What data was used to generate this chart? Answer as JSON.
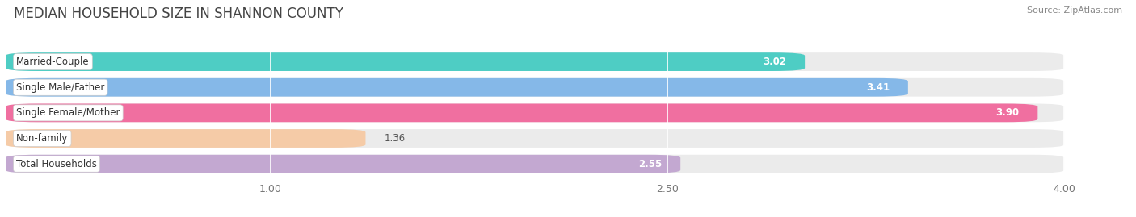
{
  "title": "MEDIAN HOUSEHOLD SIZE IN SHANNON COUNTY",
  "source": "Source: ZipAtlas.com",
  "categories": [
    "Married-Couple",
    "Single Male/Father",
    "Single Female/Mother",
    "Non-family",
    "Total Households"
  ],
  "values": [
    3.02,
    3.41,
    3.9,
    1.36,
    2.55
  ],
  "bar_colors": [
    "#4ECDC4",
    "#85B8E8",
    "#F06FA0",
    "#F5CBA7",
    "#C3A8D1"
  ],
  "xlim_left": 0.0,
  "xlim_right": 4.25,
  "xdata_min": 0.0,
  "xdata_max": 4.0,
  "xticks": [
    1.0,
    2.5,
    4.0
  ],
  "xtick_labels": [
    "1.00",
    "2.50",
    "4.00"
  ],
  "title_fontsize": 12,
  "label_fontsize": 8.5,
  "value_fontsize": 8.5,
  "background_color": "#ffffff",
  "bar_background_color": "#ebebeb",
  "bar_height": 0.72,
  "bar_gap": 0.28
}
